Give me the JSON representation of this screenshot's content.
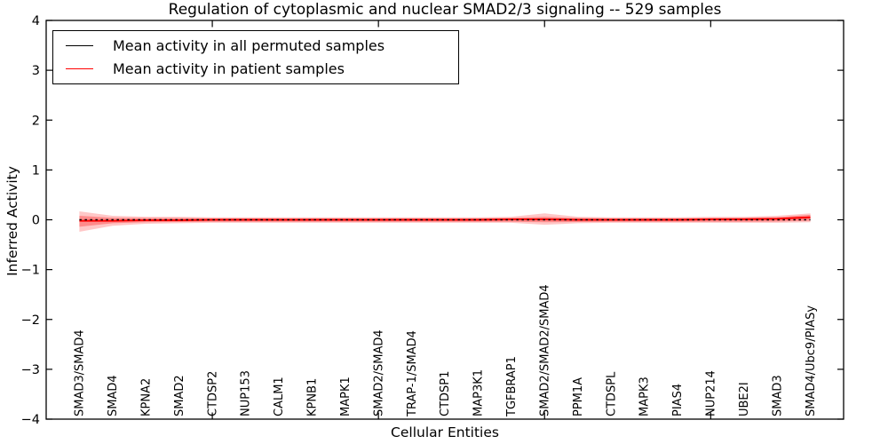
{
  "figure": {
    "background": "#ffffff"
  },
  "chart_data": {
    "type": "line",
    "title": "Regulation of cytoplasmic and nuclear SMAD2/3 signaling -- 529 samples",
    "xlabel": "Cellular Entities",
    "ylabel": "Inferred Activity",
    "xlim": [
      0,
      24
    ],
    "ylim": [
      -4,
      4
    ],
    "grid": false,
    "legend_position": "upper left",
    "ytick_values": [
      4,
      3,
      2,
      1,
      0,
      -1,
      -2,
      -3,
      -4
    ],
    "ytick_labels": [
      "4",
      "3",
      "2",
      "1",
      "0",
      "−1",
      "−2",
      "−3",
      "−4"
    ],
    "xtick_values": [
      5,
      10,
      15,
      20
    ],
    "categories": [
      "SMAD3/SMAD4",
      "SMAD4",
      "KPNA2",
      "SMAD2",
      "CTDSP2",
      "NUP153",
      "CALM1",
      "KPNB1",
      "MAPK1",
      "SMAD2/SMAD4",
      "TRAP-1/SMAD4",
      "CTDSP1",
      "MAP3K1",
      "TGFBRAP1",
      "SMAD2/SMAD2/SMAD4",
      "PPM1A",
      "CTDSPL",
      "MAPK3",
      "PIAS4",
      "NUP214",
      "UBE2I",
      "SMAD3",
      "SMAD4/Ubc9/PIASy"
    ],
    "series": [
      {
        "name": "Mean activity in all permuted samples",
        "color": "#000000",
        "plot_linestyle": "dotted",
        "values": [
          0,
          0,
          0,
          0,
          0,
          0,
          0,
          0,
          0,
          0,
          0,
          0,
          0,
          0,
          0,
          0,
          0,
          0,
          0,
          0,
          0,
          0,
          0
        ]
      },
      {
        "name": "Mean activity in patient samples",
        "color": "#ff0000",
        "plot_linestyle": "solid",
        "values": [
          -0.02,
          -0.02,
          -0.01,
          -0.01,
          0,
          0,
          0,
          0,
          0,
          0,
          0,
          0,
          0,
          0.01,
          0.01,
          0,
          0,
          0,
          0,
          0.01,
          0.01,
          0.02,
          0.05
        ]
      }
    ],
    "band": {
      "color": "#ff0000",
      "outer_opacity": 0.22,
      "inner_opacity": 0.3,
      "outer_upper": [
        0.17,
        0.08,
        0.06,
        0.06,
        0.05,
        0.05,
        0.05,
        0.05,
        0.05,
        0.05,
        0.05,
        0.05,
        0.05,
        0.06,
        0.13,
        0.06,
        0.05,
        0.05,
        0.05,
        0.06,
        0.06,
        0.08,
        0.13
      ],
      "outer_lower": [
        -0.24,
        -0.12,
        -0.08,
        -0.07,
        -0.06,
        -0.06,
        -0.06,
        -0.06,
        -0.06,
        -0.06,
        -0.06,
        -0.06,
        -0.06,
        -0.06,
        -0.1,
        -0.07,
        -0.06,
        -0.06,
        -0.06,
        -0.06,
        -0.06,
        -0.06,
        -0.05
      ],
      "inner_upper": [
        0.08,
        0.04,
        0.035,
        0.035,
        0.03,
        0.03,
        0.03,
        0.03,
        0.03,
        0.03,
        0.03,
        0.03,
        0.03,
        0.035,
        0.06,
        0.035,
        0.03,
        0.03,
        0.03,
        0.035,
        0.04,
        0.05,
        0.1
      ],
      "inner_lower": [
        -0.14,
        -0.07,
        -0.05,
        -0.045,
        -0.04,
        -0.04,
        -0.04,
        -0.04,
        -0.04,
        -0.04,
        -0.04,
        -0.04,
        -0.04,
        -0.04,
        -0.05,
        -0.045,
        -0.04,
        -0.04,
        -0.04,
        -0.04,
        -0.04,
        -0.035,
        -0.02
      ]
    }
  },
  "legend": {
    "entries": [
      {
        "label": "Mean activity in all permuted samples",
        "color": "#000000"
      },
      {
        "label": "Mean activity in patient samples",
        "color": "#ff0000"
      }
    ]
  }
}
